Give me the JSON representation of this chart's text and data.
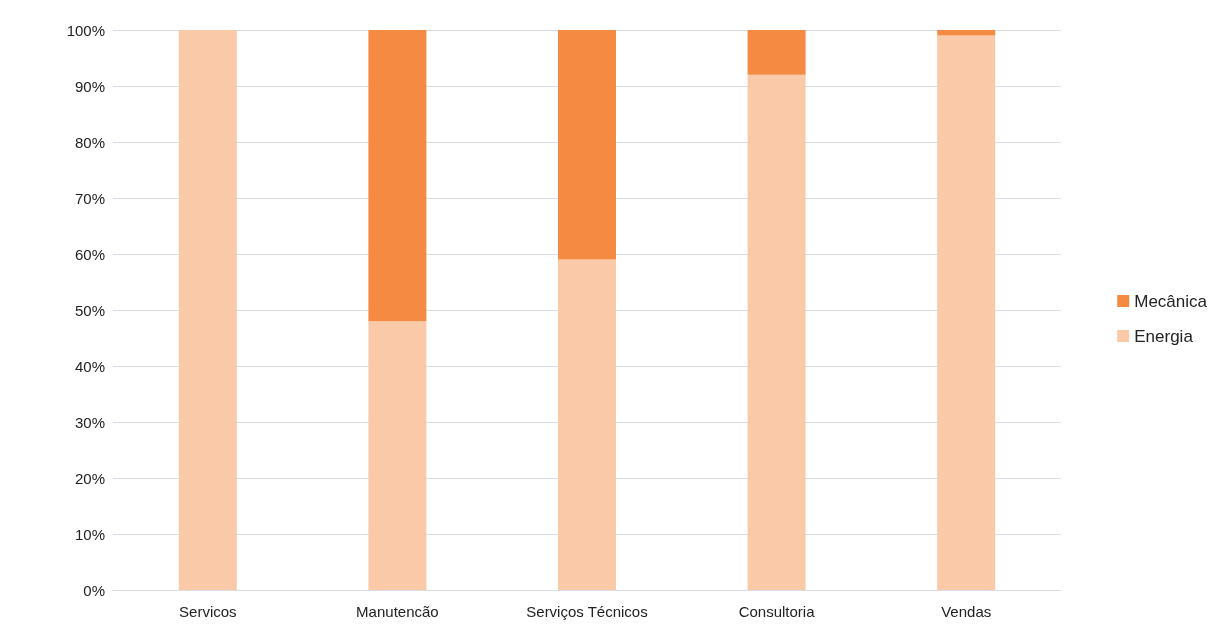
{
  "chart_data": {
    "type": "bar",
    "stacked": true,
    "categories": [
      "Servicos",
      "Manutencão",
      "Serviços Técnicos",
      "Consultoria",
      "Vendas"
    ],
    "series": [
      {
        "name": "Energia",
        "color": "#f9c9a8",
        "values": [
          100,
          48,
          59,
          92,
          99
        ]
      },
      {
        "name": "Mecânica",
        "color": "#f58a42",
        "values": [
          0,
          52,
          41,
          8,
          1
        ]
      }
    ],
    "ylim": [
      0,
      100
    ],
    "yticks": [
      {
        "value": 0,
        "label": "0%"
      },
      {
        "value": 10,
        "label": "10%"
      },
      {
        "value": 20,
        "label": "20%"
      },
      {
        "value": 30,
        "label": "30%"
      },
      {
        "value": 40,
        "label": "40%"
      },
      {
        "value": 50,
        "label": "50%"
      },
      {
        "value": 60,
        "label": "60%"
      },
      {
        "value": 70,
        "label": "70%"
      },
      {
        "value": 80,
        "label": "80%"
      },
      {
        "value": 90,
        "label": "90%"
      },
      {
        "value": 100,
        "label": "100%"
      }
    ],
    "grid": "y",
    "legend": "right"
  }
}
